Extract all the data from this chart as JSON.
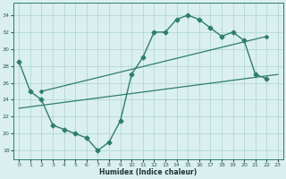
{
  "line1_x": [
    0,
    1,
    2,
    3,
    4,
    5,
    6,
    7,
    8,
    9,
    10,
    11,
    12,
    13,
    14,
    15,
    16,
    17,
    18,
    19,
    20,
    21,
    22
  ],
  "line1_y": [
    28.5,
    25,
    24,
    21,
    20.5,
    20,
    19.5,
    18,
    19,
    21.5,
    27,
    29,
    32,
    32,
    33.5,
    34,
    33.5,
    32.5,
    31.5,
    32,
    31,
    27,
    26.5
  ],
  "line2_x": [
    2,
    22
  ],
  "line2_y": [
    25,
    31.5
  ],
  "line3_x": [
    0,
    23
  ],
  "line3_y": [
    23.0,
    27.0
  ],
  "line_color": "#2e7d6e",
  "bg_color": "#daf0ee",
  "grid_color": "#aad4cc",
  "xlabel": "Humidex (Indice chaleur)",
  "xlim": [
    -0.5,
    23.5
  ],
  "ylim": [
    17,
    35.5
  ],
  "yticks": [
    18,
    20,
    22,
    24,
    26,
    28,
    30,
    32,
    34
  ],
  "xticks": [
    0,
    1,
    2,
    3,
    4,
    5,
    6,
    7,
    8,
    9,
    10,
    11,
    12,
    13,
    14,
    15,
    16,
    17,
    18,
    19,
    20,
    21,
    22,
    23
  ]
}
